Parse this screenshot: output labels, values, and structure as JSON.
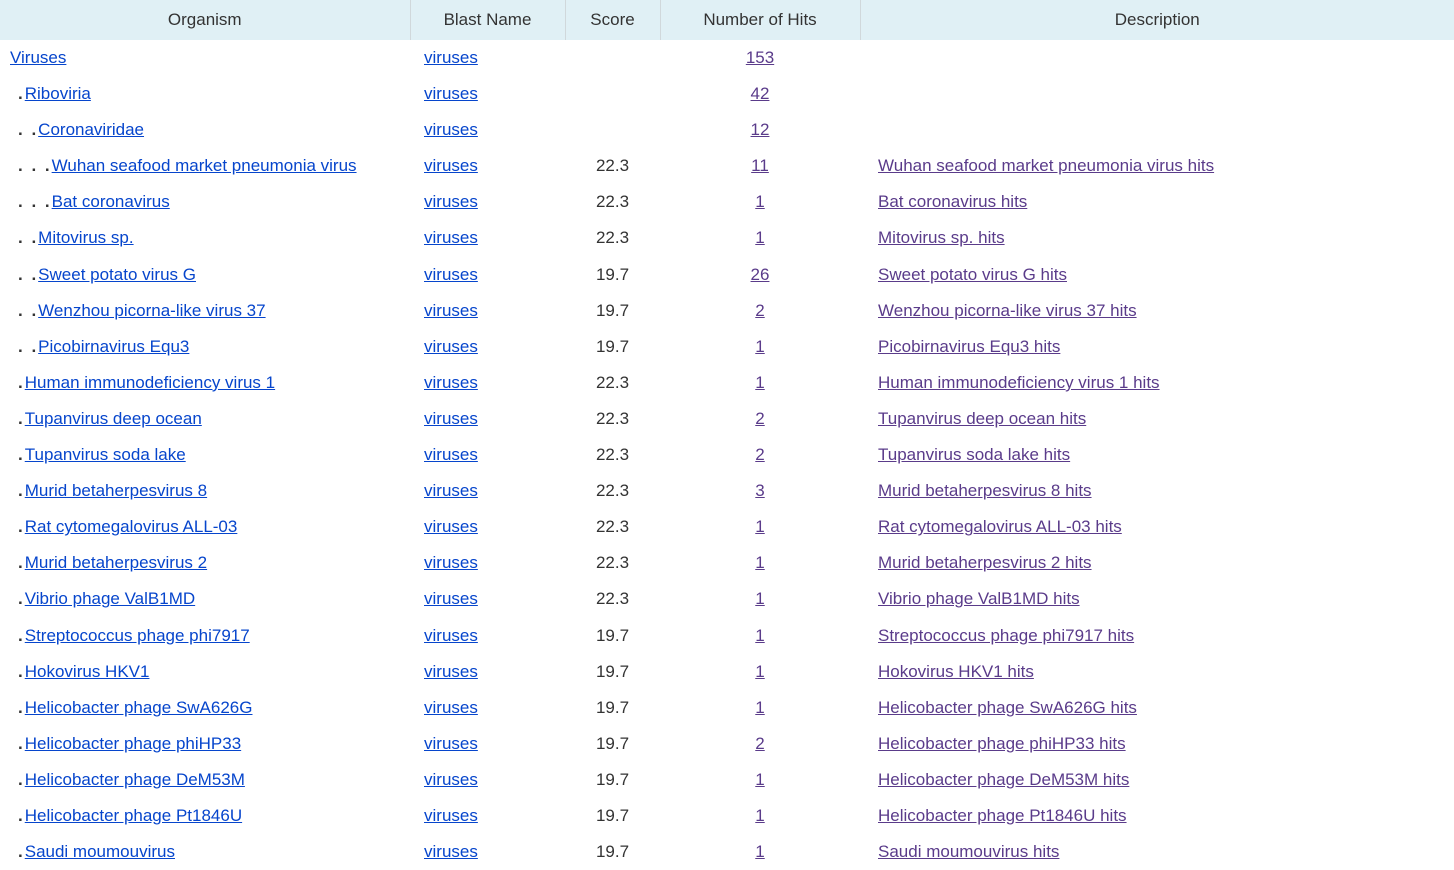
{
  "table": {
    "headers": {
      "organism": "Organism",
      "blast": "Blast Name",
      "score": "Score",
      "hits": "Number of Hits",
      "desc": "Description"
    },
    "header_bg": "#e0f0f5",
    "link_blue": "#0645cc",
    "link_purple": "#5a3b8a",
    "font_size": 17,
    "rows": [
      {
        "indent": 0,
        "organism": "Viruses",
        "blast": "viruses",
        "score": "",
        "hits": "153",
        "hits_color": "purple",
        "desc": ""
      },
      {
        "indent": 1,
        "organism": "Riboviria",
        "blast": "viruses",
        "score": "",
        "hits": "42",
        "hits_color": "purple",
        "desc": ""
      },
      {
        "indent": 2,
        "organism": "Coronaviridae",
        "blast": "viruses",
        "score": "",
        "hits": "12",
        "hits_color": "purple",
        "desc": ""
      },
      {
        "indent": 3,
        "organism": "Wuhan seafood market pneumonia virus",
        "blast": "viruses",
        "score": "22.3",
        "hits": "11",
        "hits_color": "purple",
        "desc": "Wuhan seafood market pneumonia virus hits"
      },
      {
        "indent": 3,
        "organism": "Bat coronavirus",
        "blast": "viruses",
        "score": "22.3",
        "hits": "1",
        "hits_color": "purple",
        "desc": "Bat coronavirus hits"
      },
      {
        "indent": 2,
        "organism": "Mitovirus sp.",
        "blast": "viruses",
        "score": "22.3",
        "hits": "1",
        "hits_color": "purple",
        "desc": "Mitovirus sp. hits"
      },
      {
        "indent": 2,
        "organism": "Sweet potato virus G",
        "blast": "viruses",
        "score": "19.7",
        "hits": "26",
        "hits_color": "purple",
        "desc": "Sweet potato virus G hits"
      },
      {
        "indent": 2,
        "organism": "Wenzhou picorna-like virus 37",
        "blast": "viruses",
        "score": "19.7",
        "hits": "2",
        "hits_color": "purple",
        "desc": "Wenzhou picorna-like virus 37 hits"
      },
      {
        "indent": 2,
        "organism": "Picobirnavirus Equ3",
        "blast": "viruses",
        "score": "19.7",
        "hits": "1",
        "hits_color": "purple",
        "desc": "Picobirnavirus Equ3 hits"
      },
      {
        "indent": 1,
        "organism": "Human immunodeficiency virus 1",
        "blast": "viruses",
        "score": "22.3",
        "hits": "1",
        "hits_color": "purple",
        "desc": "Human immunodeficiency virus 1 hits"
      },
      {
        "indent": 1,
        "organism": "Tupanvirus deep ocean",
        "blast": "viruses",
        "score": "22.3",
        "hits": "2",
        "hits_color": "purple",
        "desc": "Tupanvirus deep ocean hits"
      },
      {
        "indent": 1,
        "organism": "Tupanvirus soda lake",
        "blast": "viruses",
        "score": "22.3",
        "hits": "2",
        "hits_color": "purple",
        "desc": "Tupanvirus soda lake hits"
      },
      {
        "indent": 1,
        "organism": "Murid betaherpesvirus 8",
        "blast": "viruses",
        "score": "22.3",
        "hits": "3",
        "hits_color": "purple",
        "desc": "Murid betaherpesvirus 8 hits"
      },
      {
        "indent": 1,
        "organism": "Rat cytomegalovirus ALL-03",
        "blast": "viruses",
        "score": "22.3",
        "hits": "1",
        "hits_color": "purple",
        "desc": "Rat cytomegalovirus ALL-03 hits"
      },
      {
        "indent": 1,
        "organism": "Murid betaherpesvirus 2",
        "blast": "viruses",
        "score": "22.3",
        "hits": "1",
        "hits_color": "purple",
        "desc": "Murid betaherpesvirus 2 hits"
      },
      {
        "indent": 1,
        "organism": "Vibrio phage ValB1MD",
        "blast": "viruses",
        "score": "22.3",
        "hits": "1",
        "hits_color": "purple",
        "desc": "Vibrio phage ValB1MD hits"
      },
      {
        "indent": 1,
        "organism": "Streptococcus phage phi7917",
        "blast": "viruses",
        "score": "19.7",
        "hits": "1",
        "hits_color": "purple",
        "desc": "Streptococcus phage phi7917 hits"
      },
      {
        "indent": 1,
        "organism": "Hokovirus HKV1",
        "blast": "viruses",
        "score": "19.7",
        "hits": "1",
        "hits_color": "purple",
        "desc": "Hokovirus HKV1 hits"
      },
      {
        "indent": 1,
        "organism": "Helicobacter phage SwA626G",
        "blast": "viruses",
        "score": "19.7",
        "hits": "1",
        "hits_color": "purple",
        "desc": "Helicobacter phage SwA626G hits"
      },
      {
        "indent": 1,
        "organism": "Helicobacter phage phiHP33",
        "blast": "viruses",
        "score": "19.7",
        "hits": "2",
        "hits_color": "purple",
        "desc": "Helicobacter phage phiHP33 hits"
      },
      {
        "indent": 1,
        "organism": "Helicobacter phage DeM53M",
        "blast": "viruses",
        "score": "19.7",
        "hits": "1",
        "hits_color": "purple",
        "desc": "Helicobacter phage DeM53M hits"
      },
      {
        "indent": 1,
        "organism": "Helicobacter phage Pt1846U",
        "blast": "viruses",
        "score": "19.7",
        "hits": "1",
        "hits_color": "purple",
        "desc": "Helicobacter phage Pt1846U hits"
      },
      {
        "indent": 1,
        "organism": "Saudi moumouvirus",
        "blast": "viruses",
        "score": "19.7",
        "hits": "1",
        "hits_color": "purple",
        "desc": "Saudi moumouvirus hits"
      }
    ]
  }
}
